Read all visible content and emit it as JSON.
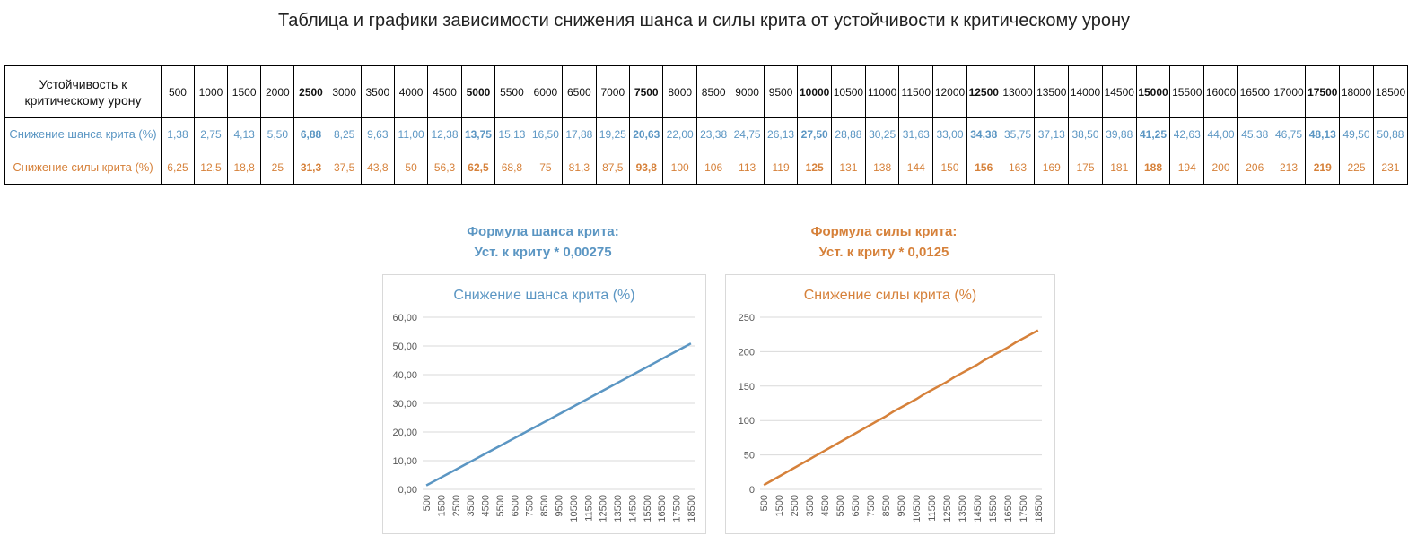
{
  "title": "Таблица и графики зависимости снижения шанса и силы крита от устойчивости к критическому урону",
  "table": {
    "row_labels": {
      "resist": "Устойчивость к критическому урону",
      "chance": "Снижение шанса крита (%)",
      "damage": "Снижение силы крита (%)"
    },
    "resist": [
      "500",
      "1000",
      "1500",
      "2000",
      "2500",
      "3000",
      "3500",
      "4000",
      "4500",
      "5000",
      "5500",
      "6000",
      "6500",
      "7000",
      "7500",
      "8000",
      "8500",
      "9000",
      "9500",
      "10000",
      "10500",
      "11000",
      "11500",
      "12000",
      "12500",
      "13000",
      "13500",
      "14000",
      "14500",
      "15000",
      "15500",
      "16000",
      "16500",
      "17000",
      "17500",
      "18000",
      "18500"
    ],
    "chance": [
      "1,38",
      "2,75",
      "4,13",
      "5,50",
      "6,88",
      "8,25",
      "9,63",
      "11,00",
      "12,38",
      "13,75",
      "15,13",
      "16,50",
      "17,88",
      "19,25",
      "20,63",
      "22,00",
      "23,38",
      "24,75",
      "26,13",
      "27,50",
      "28,88",
      "30,25",
      "31,63",
      "33,00",
      "34,38",
      "35,75",
      "37,13",
      "38,50",
      "39,88",
      "41,25",
      "42,63",
      "44,00",
      "45,38",
      "46,75",
      "48,13",
      "49,50",
      "50,88"
    ],
    "damage": [
      "6,25",
      "12,5",
      "18,8",
      "25",
      "31,3",
      "37,5",
      "43,8",
      "50",
      "56,3",
      "62,5",
      "68,8",
      "75",
      "81,3",
      "87,5",
      "93,8",
      "100",
      "106",
      "113",
      "119",
      "125",
      "131",
      "138",
      "144",
      "150",
      "156",
      "163",
      "169",
      "175",
      "181",
      "188",
      "194",
      "200",
      "206",
      "213",
      "219",
      "225",
      "231"
    ],
    "bold_columns": [
      4,
      9,
      14,
      19,
      24,
      29,
      34
    ]
  },
  "formulas": {
    "chance": {
      "line1": "Формула шанса крита:",
      "line2": "Уст. к криту * 0,00275"
    },
    "damage": {
      "line1": "Формула силы крита:",
      "line2": "Уст. к криту * 0,0125"
    }
  },
  "colors": {
    "chance": "#5b96c3",
    "damage": "#d6813a",
    "grid": "#d9d9d9",
    "axis_text": "#595959"
  },
  "chart_data": [
    {
      "type": "line",
      "title": "Снижение шанса крита (%)",
      "x": [
        500,
        1000,
        1500,
        2000,
        2500,
        3000,
        3500,
        4000,
        4500,
        5000,
        5500,
        6000,
        6500,
        7000,
        7500,
        8000,
        8500,
        9000,
        9500,
        10000,
        10500,
        11000,
        11500,
        12000,
        12500,
        13000,
        13500,
        14000,
        14500,
        15000,
        15500,
        16000,
        16500,
        17000,
        17500,
        18000,
        18500
      ],
      "x_tick_labels": [
        "500",
        "1500",
        "2500",
        "3500",
        "4500",
        "5500",
        "6500",
        "7500",
        "8500",
        "9500",
        "10500",
        "11500",
        "12500",
        "13500",
        "14500",
        "15500",
        "16500",
        "17500",
        "18500"
      ],
      "values": [
        1.38,
        2.75,
        4.13,
        5.5,
        6.88,
        8.25,
        9.63,
        11.0,
        12.38,
        13.75,
        15.13,
        16.5,
        17.88,
        19.25,
        20.63,
        22.0,
        23.38,
        24.75,
        26.13,
        27.5,
        28.88,
        30.25,
        31.63,
        33.0,
        34.38,
        35.75,
        37.13,
        38.5,
        39.88,
        41.25,
        42.63,
        44.0,
        45.38,
        46.75,
        48.13,
        49.5,
        50.88
      ],
      "ylim": [
        0,
        60
      ],
      "y_tick_labels": [
        "0,00",
        "10,00",
        "20,00",
        "30,00",
        "40,00",
        "50,00",
        "60,00"
      ],
      "grid": true
    },
    {
      "type": "line",
      "title": "Снижение силы крита (%)",
      "x": [
        500,
        1000,
        1500,
        2000,
        2500,
        3000,
        3500,
        4000,
        4500,
        5000,
        5500,
        6000,
        6500,
        7000,
        7500,
        8000,
        8500,
        9000,
        9500,
        10000,
        10500,
        11000,
        11500,
        12000,
        12500,
        13000,
        13500,
        14000,
        14500,
        15000,
        15500,
        16000,
        16500,
        17000,
        17500,
        18000,
        18500
      ],
      "x_tick_labels": [
        "500",
        "1500",
        "2500",
        "3500",
        "4500",
        "5500",
        "6500",
        "7500",
        "8500",
        "9500",
        "10500",
        "11500",
        "12500",
        "13500",
        "14500",
        "15500",
        "16500",
        "17500",
        "18500"
      ],
      "values": [
        6.25,
        12.5,
        18.8,
        25,
        31.3,
        37.5,
        43.8,
        50,
        56.3,
        62.5,
        68.8,
        75,
        81.3,
        87.5,
        93.8,
        100,
        106,
        113,
        119,
        125,
        131,
        138,
        144,
        150,
        156,
        163,
        169,
        175,
        181,
        188,
        194,
        200,
        206,
        213,
        219,
        225,
        231
      ],
      "ylim": [
        0,
        250
      ],
      "y_tick_labels": [
        "0",
        "50",
        "100",
        "150",
        "200",
        "250"
      ],
      "grid": true
    }
  ]
}
